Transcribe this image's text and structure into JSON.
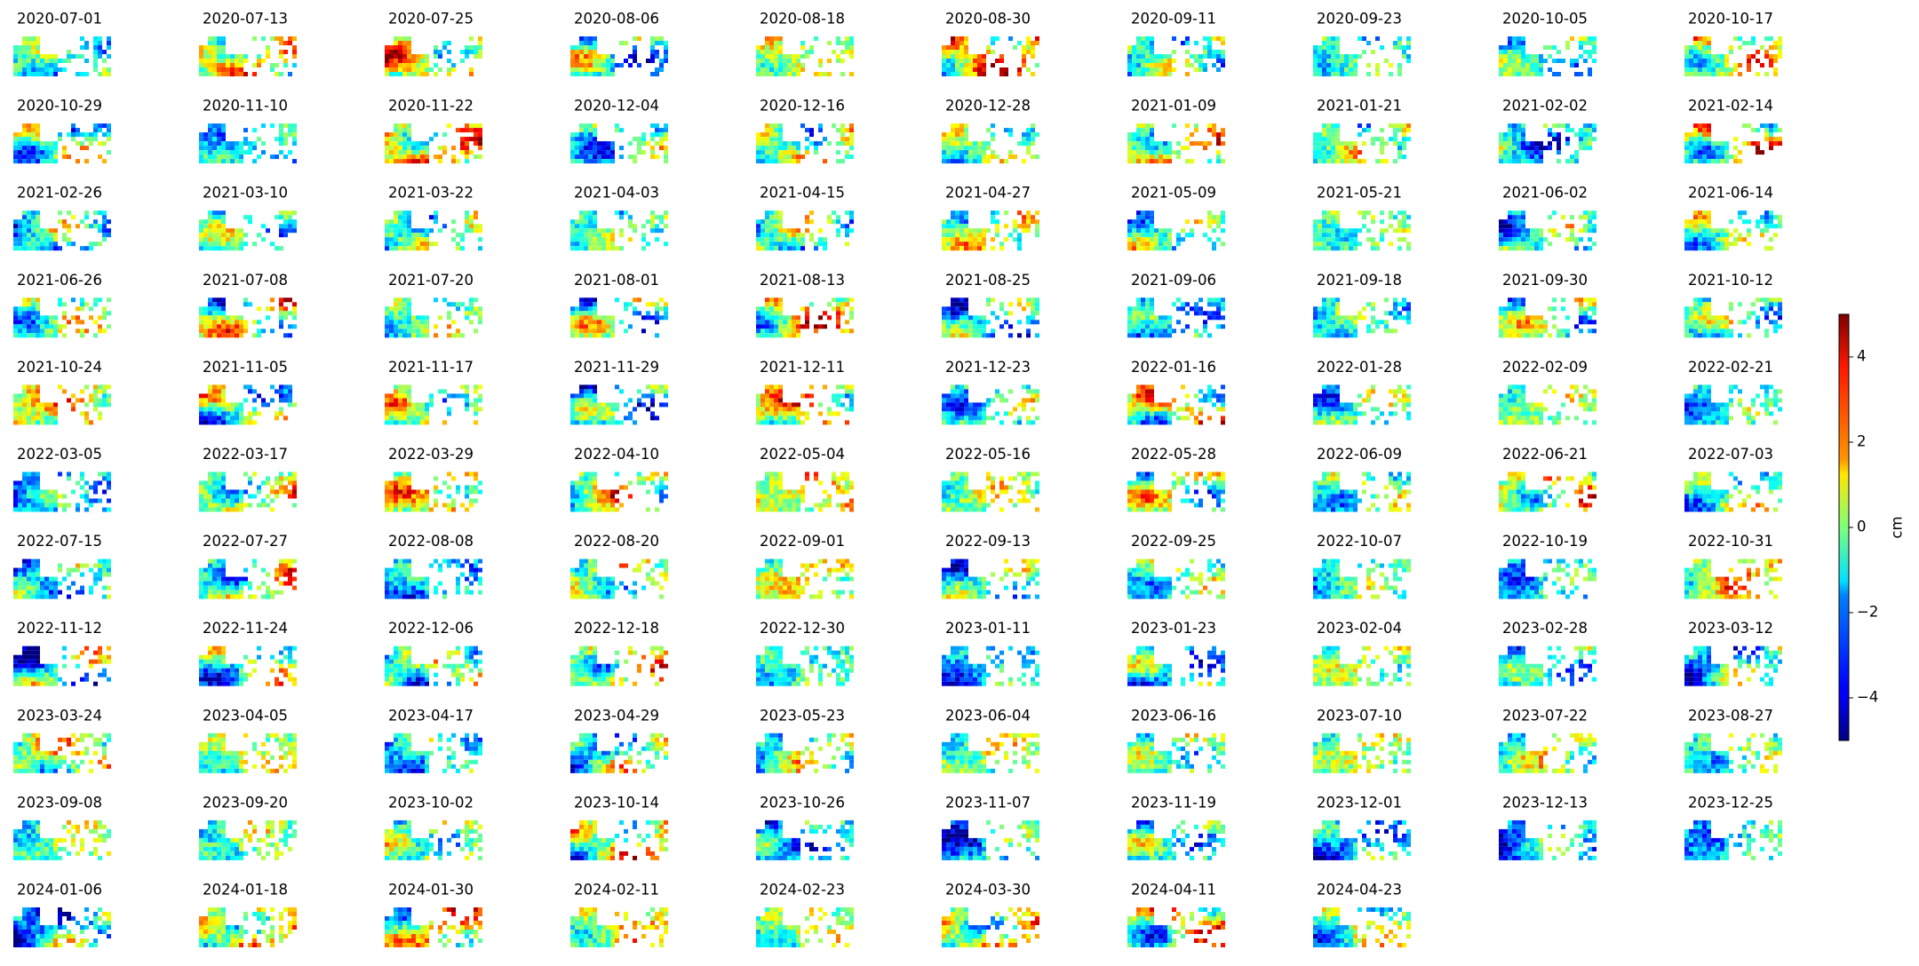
{
  "chart_data": {
    "type": "imagegrid",
    "colormap": "jet",
    "panels": [
      "2020-07-01",
      "2020-07-13",
      "2020-07-25",
      "2020-08-06",
      "2020-08-18",
      "2020-08-30",
      "2020-09-11",
      "2020-09-23",
      "2020-10-05",
      "2020-10-17",
      "2020-10-29",
      "2020-11-10",
      "2020-11-22",
      "2020-12-04",
      "2020-12-16",
      "2020-12-28",
      "2021-01-09",
      "2021-01-21",
      "2021-02-02",
      "2021-02-14",
      "2021-02-26",
      "2021-03-10",
      "2021-03-22",
      "2021-04-03",
      "2021-04-15",
      "2021-04-27",
      "2021-05-09",
      "2021-05-21",
      "2021-06-02",
      "2021-06-14",
      "2021-06-26",
      "2021-07-08",
      "2021-07-20",
      "2021-08-01",
      "2021-08-13",
      "2021-08-25",
      "2021-09-06",
      "2021-09-18",
      "2021-09-30",
      "2021-10-12",
      "2021-10-24",
      "2021-11-05",
      "2021-11-17",
      "2021-11-29",
      "2021-12-11",
      "2021-12-23",
      "2022-01-16",
      "2022-01-28",
      "2022-02-09",
      "2022-02-21",
      "2022-03-05",
      "2022-03-17",
      "2022-03-29",
      "2022-04-10",
      "2022-05-04",
      "2022-05-16",
      "2022-05-28",
      "2022-06-09",
      "2022-06-21",
      "2022-07-03",
      "2022-07-15",
      "2022-07-27",
      "2022-08-08",
      "2022-08-20",
      "2022-09-01",
      "2022-09-13",
      "2022-09-25",
      "2022-10-07",
      "2022-10-19",
      "2022-10-31",
      "2022-11-12",
      "2022-11-24",
      "2022-12-06",
      "2022-12-18",
      "2022-12-30",
      "2023-01-11",
      "2023-01-23",
      "2023-02-04",
      "2023-02-28",
      "2023-03-12",
      "2023-03-24",
      "2023-04-05",
      "2023-04-17",
      "2023-04-29",
      "2023-05-23",
      "2023-06-04",
      "2023-06-16",
      "2023-07-10",
      "2023-07-22",
      "2023-08-27",
      "2023-09-08",
      "2023-09-20",
      "2023-10-02",
      "2023-10-14",
      "2023-10-26",
      "2023-11-07",
      "2023-11-19",
      "2023-12-01",
      "2023-12-13",
      "2023-12-25",
      "2024-01-06",
      "2024-01-18",
      "2024-01-30",
      "2024-02-11",
      "2024-02-23",
      "2024-03-30",
      "2024-04-11",
      "2024-04-23"
    ],
    "ylabel": "cm",
    "ylim": [
      -5,
      5
    ],
    "yticks": [
      {
        "value": -4,
        "label": "−4"
      },
      {
        "value": -2,
        "label": "−2"
      },
      0,
      2,
      4
    ]
  }
}
